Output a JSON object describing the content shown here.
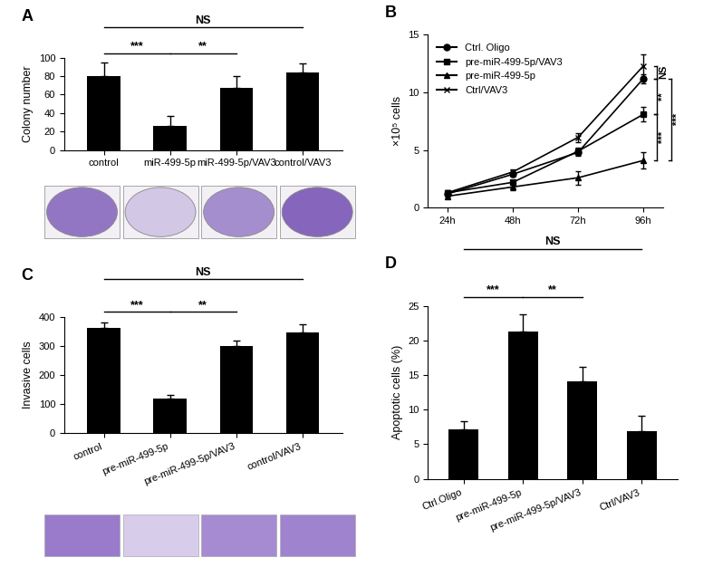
{
  "chart_data": [
    {
      "type": "bar",
      "title": "A",
      "y_label": "Colony number",
      "categories": [
        "control",
        "miR-499-5p",
        "miR-499-5p/VAV3",
        "control/VAV3"
      ],
      "values": [
        80,
        26,
        67,
        84
      ],
      "errors": [
        15,
        11,
        13,
        10
      ],
      "color": "#000000",
      "ylim": [
        0,
        100
      ],
      "yticks": [
        0,
        20,
        40,
        60,
        80,
        100
      ],
      "annotations": [
        {
          "text": "***",
          "between": [
            "control",
            "miR-499-5p"
          ]
        },
        {
          "text": "**",
          "between": [
            "miR-499-5p",
            "miR-499-5p/VAV3"
          ]
        },
        {
          "text": "NS",
          "between": [
            "control",
            "control/VAV3"
          ]
        }
      ]
    },
    {
      "type": "line",
      "title": "B",
      "y_label": "×10⁵ cells",
      "categories": [
        "24h",
        "48h",
        "72h",
        "96h"
      ],
      "series": [
        {
          "name": "Ctrl. Oligo",
          "color": "#000000",
          "marker": "circle",
          "line_style": "solid",
          "values": [
            1.2,
            2.9,
            4.8,
            11.2
          ],
          "errors": [
            0.2,
            0.2,
            0.3,
            0.4
          ]
        },
        {
          "name": "pre-miR-499-5p/VAV3",
          "color": "#000000",
          "marker": "square",
          "line_style": "solid",
          "values": [
            1.3,
            2.2,
            4.9,
            8.1
          ],
          "errors": [
            0.2,
            0.2,
            0.3,
            0.6
          ]
        },
        {
          "name": "pre-miR-499-5p",
          "color": "#000000",
          "marker": "triangle",
          "line_style": "solid",
          "values": [
            1.0,
            1.8,
            2.6,
            4.1
          ],
          "errors": [
            0.2,
            0.3,
            0.6,
            0.7
          ]
        },
        {
          "name": "Ctrl/VAV3",
          "color": "#000000",
          "marker": "x",
          "line_style": "solid",
          "values": [
            1.3,
            3.1,
            6.1,
            12.3
          ],
          "errors": [
            0.2,
            0.2,
            0.4,
            1.0
          ]
        }
      ],
      "ylim": [
        0,
        15
      ],
      "yticks": [
        0,
        5,
        10,
        15
      ],
      "legend": "upper left",
      "annotations": [
        {
          "text": "NS",
          "at": "96h",
          "between": [
            "Ctrl/VAV3",
            "Ctrl. Oligo"
          ]
        },
        {
          "text": "**",
          "at": "96h",
          "between": [
            "Ctrl. Oligo",
            "pre-miR-499-5p/VAV3"
          ]
        },
        {
          "text": "***",
          "at": "96h",
          "between": [
            "pre-miR-499-5p/VAV3",
            "pre-miR-499-5p"
          ]
        },
        {
          "text": "***",
          "at": "96h",
          "between": [
            "Ctrl. Oligo",
            "pre-miR-499-5p"
          ]
        }
      ]
    },
    {
      "type": "bar",
      "title": "C",
      "y_label": "Invasive cells",
      "categories": [
        "control",
        "pre-miR-499-5p",
        "pre-miR-499-5p/VAV3",
        "control/VAV3"
      ],
      "values": [
        362,
        117,
        302,
        347
      ],
      "errors": [
        20,
        15,
        18,
        28
      ],
      "color": "#000000",
      "ylim": [
        0,
        400
      ],
      "yticks": [
        0,
        100,
        200,
        300,
        400
      ],
      "annotations": [
        {
          "text": "***",
          "between": [
            "control",
            "pre-miR-499-5p"
          ]
        },
        {
          "text": "**",
          "between": [
            "pre-miR-499-5p",
            "pre-miR-499-5p/VAV3"
          ]
        },
        {
          "text": "NS",
          "between": [
            "control",
            "control/VAV3"
          ]
        }
      ]
    },
    {
      "type": "bar",
      "title": "D",
      "y_label": "Apoptotic cells (%)",
      "categories": [
        "Ctrl.Oligo",
        "pre-miR-499-5p",
        "pre-miR-499-5p/VAV3",
        "Ctrl/VAV3"
      ],
      "values": [
        7.2,
        21.3,
        14.1,
        6.9
      ],
      "errors": [
        1.2,
        2.5,
        2.1,
        2.2
      ],
      "color": "#000000",
      "ylim": [
        0,
        25
      ],
      "yticks": [
        0,
        5,
        10,
        15,
        20,
        25
      ],
      "annotations": [
        {
          "text": "***",
          "between": [
            "Ctrl.Oligo",
            "pre-miR-499-5p"
          ]
        },
        {
          "text": "**",
          "between": [
            "pre-miR-499-5p",
            "pre-miR-499-5p/VAV3"
          ]
        },
        {
          "text": "NS",
          "between": [
            "Ctrl.Oligo",
            "Ctrl/VAV3"
          ]
        }
      ]
    }
  ]
}
